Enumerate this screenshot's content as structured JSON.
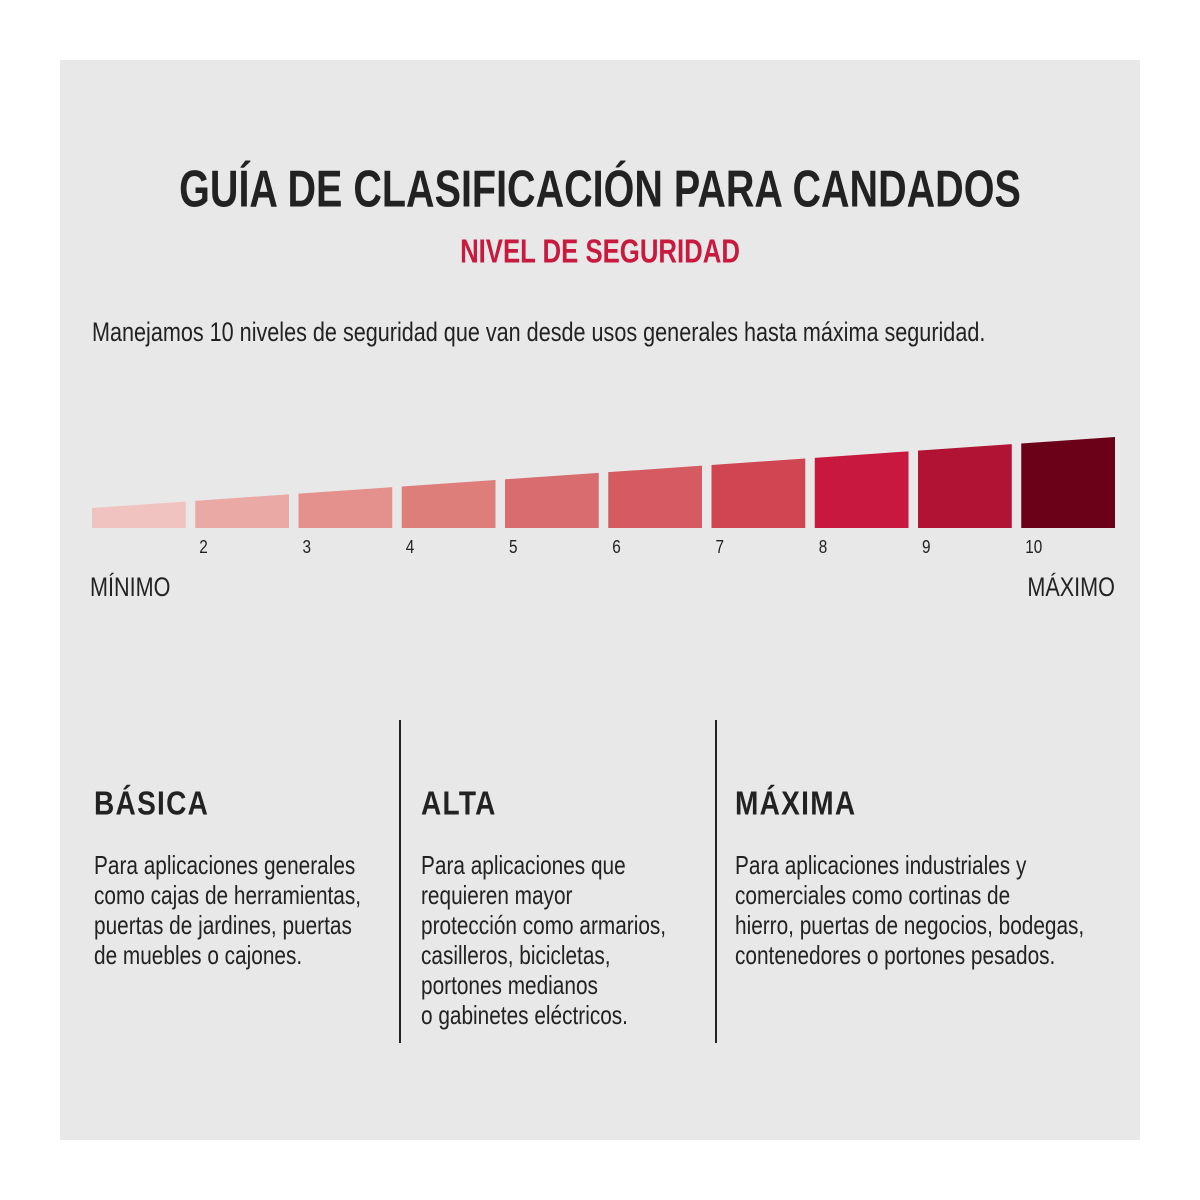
{
  "header": {
    "title": "GUÍA DE CLASIFICACIÓN PARA CANDADOS",
    "subtitle": "NIVEL DE SEGURIDAD"
  },
  "intro": "Manejamos 10 niveles de seguridad que van desde usos generales hasta máxima seguridad.",
  "scale": {
    "segments": [
      {
        "color": "#f0c3c0"
      },
      {
        "label": "2",
        "color": "#eaa9a5"
      },
      {
        "label": "3",
        "color": "#e4918d"
      },
      {
        "label": "4",
        "color": "#de7e7b"
      },
      {
        "label": "5",
        "color": "#d96c6e"
      },
      {
        "label": "6",
        "color": "#d55a61"
      },
      {
        "label": "7",
        "color": "#d14452"
      },
      {
        "label": "8",
        "color": "#c8183f"
      },
      {
        "label": "9",
        "color": "#b01334"
      },
      {
        "label": "10",
        "color": "#6b0019"
      }
    ],
    "min_label": "MÍNIMO",
    "max_label": "MÁXIMO"
  },
  "columns": [
    {
      "title": "BÁSICA",
      "lines": [
        "Para aplicaciones generales",
        "como cajas de herramientas,",
        "puertas de jardines, puertas",
        "de muebles o cajones."
      ]
    },
    {
      "title": "ALTA",
      "lines": [
        "Para aplicaciones que",
        "requieren mayor",
        "protección como armarios,",
        "casilleros, bicicletas,",
        "portones medianos",
        "o gabinetes eléctricos."
      ]
    },
    {
      "title": "MÁXIMA",
      "lines": [
        "Para aplicaciones industriales y",
        "comerciales como cortinas de",
        "hierro, puertas de negocios, bodegas,",
        "contenedores o portones pesados."
      ]
    }
  ]
}
